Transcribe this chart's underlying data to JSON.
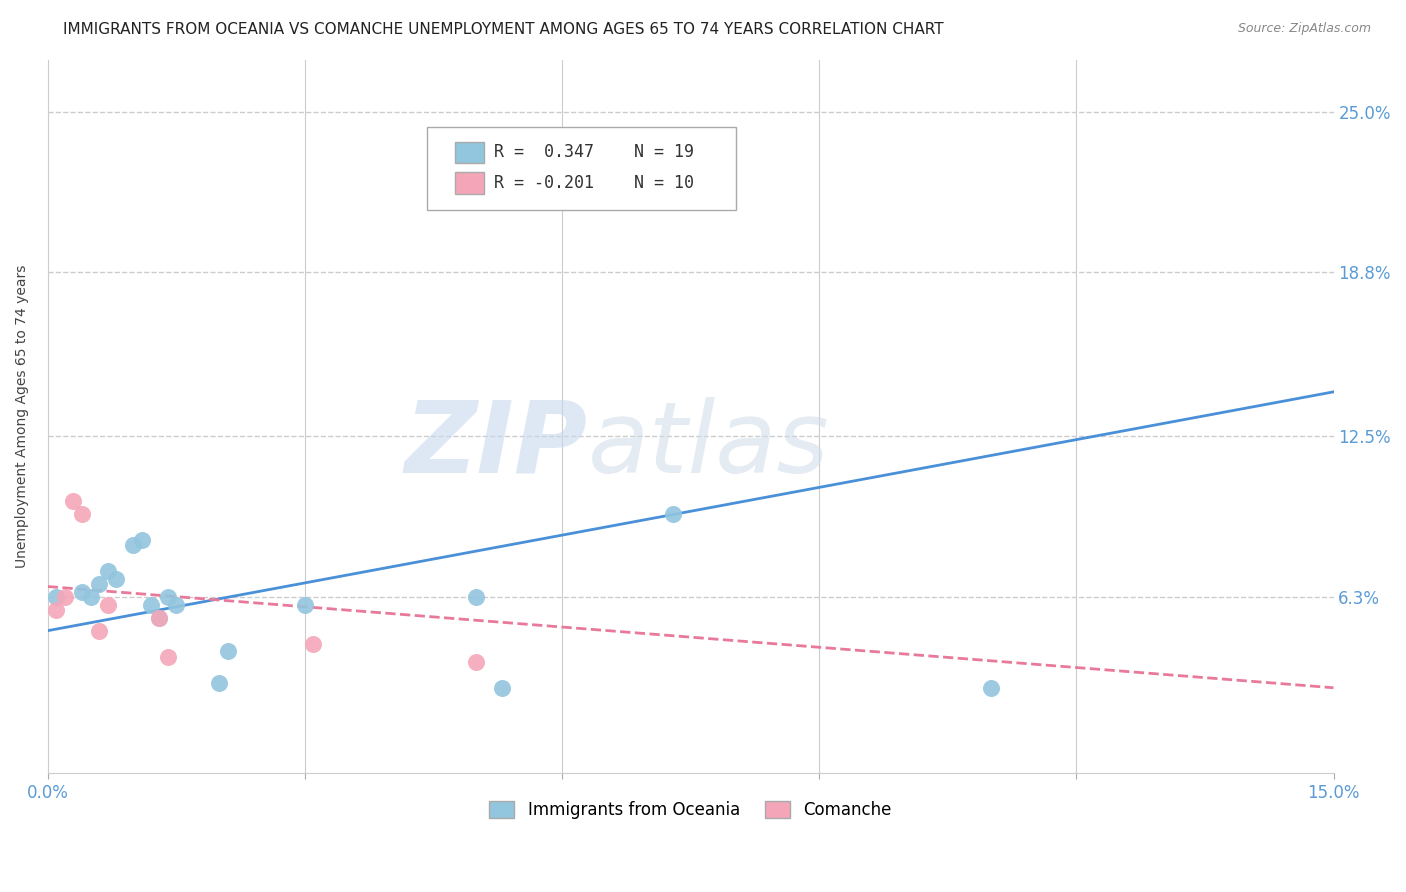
{
  "title": "IMMIGRANTS FROM OCEANIA VS COMANCHE UNEMPLOYMENT AMONG AGES 65 TO 74 YEARS CORRELATION CHART",
  "source": "Source: ZipAtlas.com",
  "ylabel": "Unemployment Among Ages 65 to 74 years",
  "xlim": [
    0.0,
    0.15
  ],
  "ylim": [
    -0.005,
    0.27
  ],
  "ytick_positions": [
    0.063,
    0.125,
    0.188,
    0.25
  ],
  "ytick_labels": [
    "6.3%",
    "12.5%",
    "18.8%",
    "25.0%"
  ],
  "blue_scatter_x": [
    0.001,
    0.004,
    0.005,
    0.006,
    0.007,
    0.008,
    0.01,
    0.011,
    0.012,
    0.013,
    0.014,
    0.015,
    0.02,
    0.021,
    0.03,
    0.05,
    0.053,
    0.073,
    0.11
  ],
  "blue_scatter_y": [
    0.063,
    0.065,
    0.063,
    0.068,
    0.073,
    0.07,
    0.083,
    0.085,
    0.06,
    0.055,
    0.063,
    0.06,
    0.03,
    0.042,
    0.06,
    0.063,
    0.028,
    0.095,
    0.028
  ],
  "pink_scatter_x": [
    0.001,
    0.002,
    0.003,
    0.004,
    0.006,
    0.007,
    0.013,
    0.014,
    0.031,
    0.05
  ],
  "pink_scatter_y": [
    0.058,
    0.063,
    0.1,
    0.095,
    0.05,
    0.06,
    0.055,
    0.04,
    0.045,
    0.038
  ],
  "blue_line_x": [
    0.0,
    0.15
  ],
  "blue_line_y": [
    0.05,
    0.142
  ],
  "pink_line_x": [
    0.0,
    0.15
  ],
  "pink_line_y": [
    0.067,
    0.028
  ],
  "blue_color": "#92c5de",
  "pink_color": "#f4a6b8",
  "blue_line_color": "#4a90d9",
  "pink_line_color": "#e8799a",
  "label_blue": "Immigrants from Oceania",
  "label_pink": "Comanche",
  "watermark_1": "ZIP",
  "watermark_2": "atlas",
  "background_color": "#ffffff",
  "grid_color": "#cccccc",
  "axis_label_color": "#5b9bd5",
  "title_fontsize": 11,
  "source_fontsize": 9,
  "legend_r_blue": "R =  0.347",
  "legend_n_blue": "N = 19",
  "legend_r_pink": "R = -0.201",
  "legend_n_pink": "N = 10"
}
